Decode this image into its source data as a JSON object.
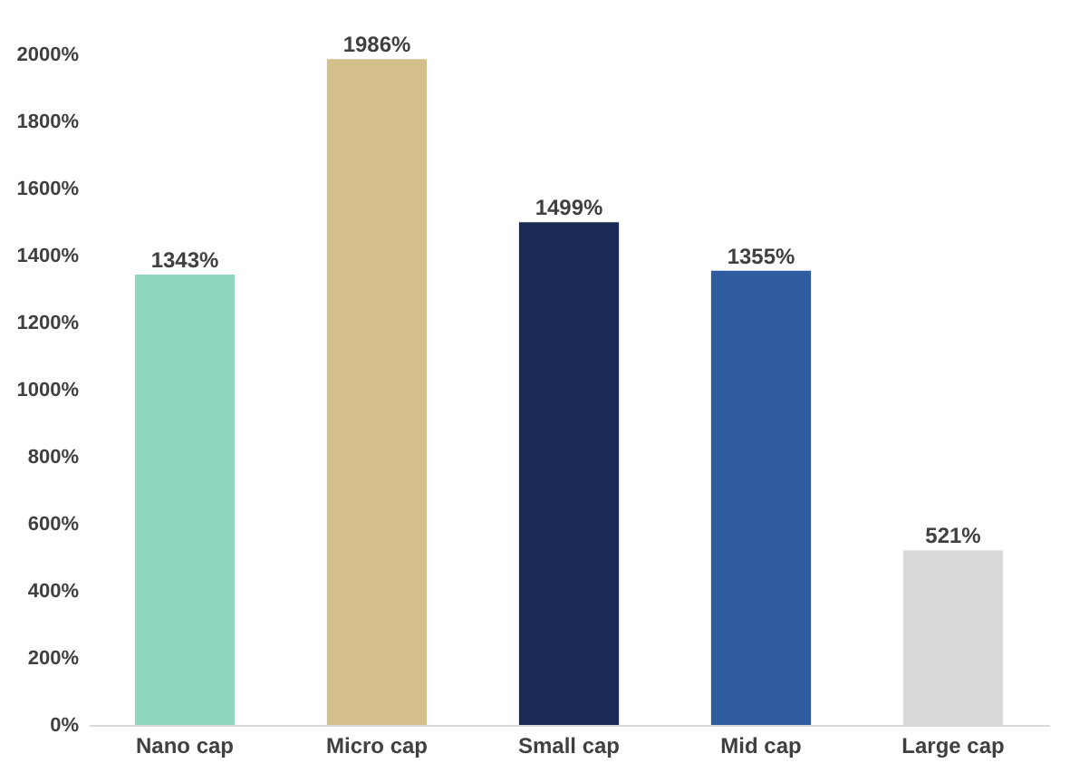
{
  "chart_data": {
    "type": "bar",
    "categories": [
      "Nano cap",
      "Micro cap",
      "Small cap",
      "Mid cap",
      "Large cap"
    ],
    "values": [
      1343,
      1986,
      1499,
      1355,
      521
    ],
    "colors": [
      "#8dd5bd",
      "#d4bf8a",
      "#1a2a55",
      "#2f5c9f",
      "#d9d9d9"
    ],
    "value_labels": [
      "1343%",
      "1986%",
      "1499%",
      "1355%",
      "521%"
    ],
    "ylim": [
      0,
      2000
    ],
    "yticks": [
      {
        "value": 0,
        "label": "0%"
      },
      {
        "value": 200,
        "label": "200%"
      },
      {
        "value": 400,
        "label": "400%"
      },
      {
        "value": 600,
        "label": "600%"
      },
      {
        "value": 800,
        "label": "800%"
      },
      {
        "value": 1000,
        "label": "1000%"
      },
      {
        "value": 1200,
        "label": "1200%"
      },
      {
        "value": 1400,
        "label": "1400%"
      },
      {
        "value": 1600,
        "label": "1600%"
      },
      {
        "value": 1800,
        "label": "1800%"
      },
      {
        "value": 2000,
        "label": "2000%"
      }
    ],
    "grid": false,
    "legend": false
  }
}
